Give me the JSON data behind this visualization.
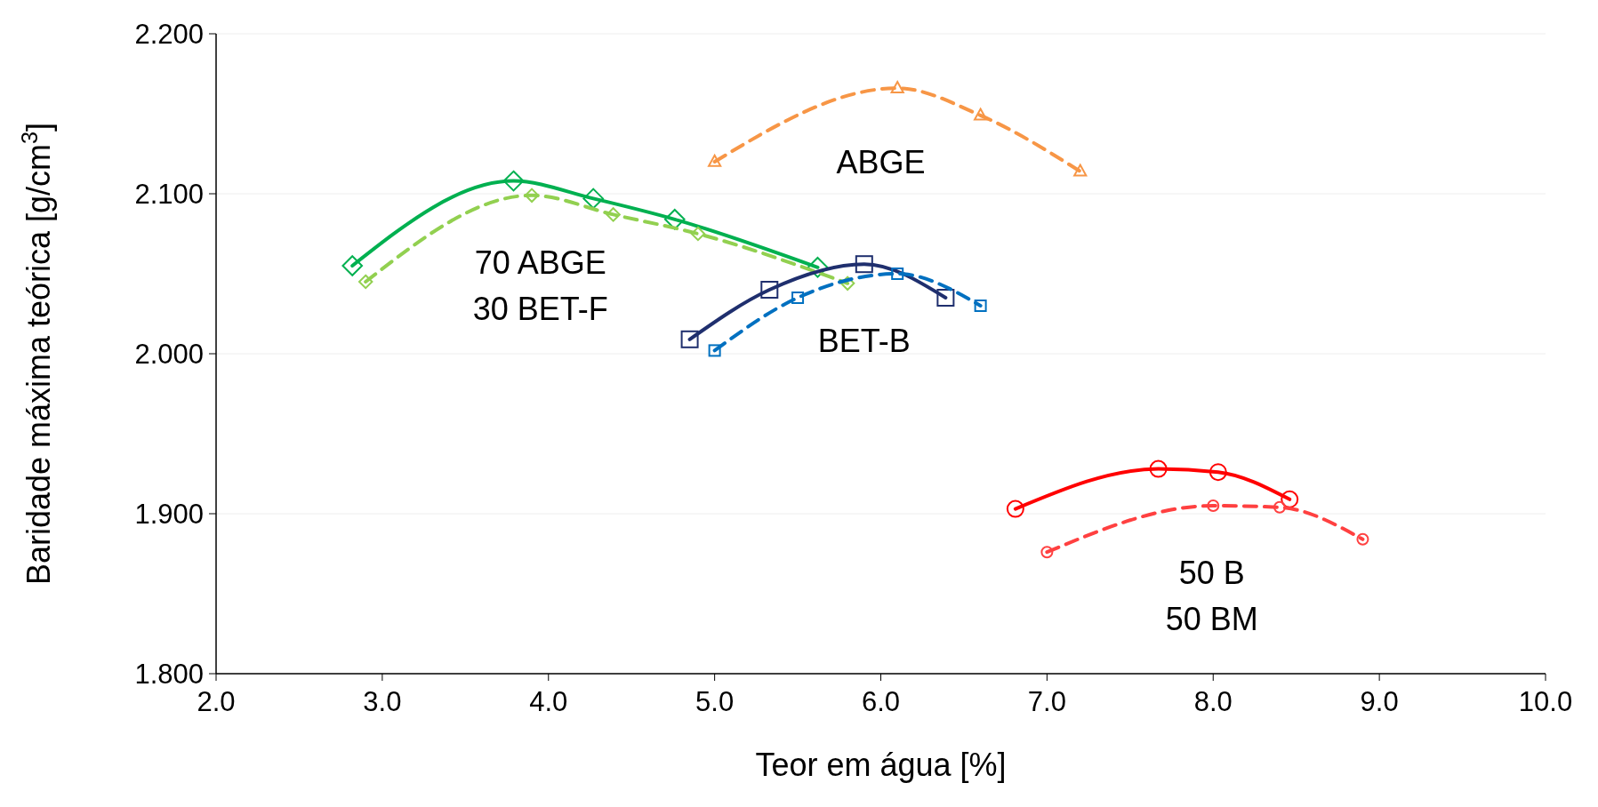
{
  "chart_data": {
    "type": "line",
    "xlabel": "Teor em água [%]",
    "ylabel": "Baridade máxima teórica [g/cm$^{3}$]",
    "xlim": [
      2,
      10
    ],
    "ylim": [
      1.8,
      2.2
    ],
    "xticks": [
      {
        "value": 2,
        "label": "2.0"
      },
      {
        "value": 3,
        "label": "3.0"
      },
      {
        "value": 4,
        "label": "4.0"
      },
      {
        "value": 5,
        "label": "5.0"
      },
      {
        "value": 6,
        "label": "6.0"
      },
      {
        "value": 7,
        "label": "7.0"
      },
      {
        "value": 8,
        "label": "8.0"
      },
      {
        "value": 9,
        "label": "9.0"
      },
      {
        "value": 10,
        "label": "10.0"
      }
    ],
    "yticks": [
      {
        "value": 1.8,
        "label": "1.800"
      },
      {
        "value": 1.9,
        "label": "1.900"
      },
      {
        "value": 2.0,
        "label": "2.000"
      },
      {
        "value": 2.1,
        "label": "2.100"
      },
      {
        "value": 2.2,
        "label": "2.200"
      }
    ],
    "grid": "y",
    "series": [
      {
        "color": "#00b050",
        "marker": "diamond",
        "line_style": "solid",
        "x": [
          2.82,
          3.79,
          4.27,
          4.76,
          5.62
        ],
        "values": [
          2.055,
          2.108,
          2.097,
          2.084,
          2.054
        ]
      },
      {
        "color": "#92d050",
        "marker": "diamond",
        "line_style": "dashed",
        "x": [
          2.9,
          3.9,
          4.39,
          4.9,
          5.8
        ],
        "values": [
          2.045,
          2.099,
          2.087,
          2.075,
          2.044
        ]
      },
      {
        "color": "#1f2f6e",
        "marker": "square",
        "line_style": "solid",
        "x": [
          4.85,
          5.33,
          5.9,
          6.39
        ],
        "values": [
          2.009,
          2.04,
          2.056,
          2.035
        ]
      },
      {
        "color": "#0070c0",
        "marker": "square",
        "line_style": "dashed",
        "x": [
          5.0,
          5.5,
          6.1,
          6.6
        ],
        "values": [
          2.002,
          2.035,
          2.05,
          2.03
        ]
      },
      {
        "color": "#f79646",
        "marker": "triangle",
        "line_style": "dashed",
        "x": [
          5.0,
          6.1,
          6.6,
          7.2
        ],
        "values": [
          2.12,
          2.166,
          2.149,
          2.114
        ]
      },
      {
        "color": "#ff0000",
        "marker": "circle",
        "line_style": "solid",
        "x": [
          6.81,
          7.67,
          8.03,
          8.46
        ],
        "values": [
          1.903,
          1.928,
          1.926,
          1.909
        ]
      },
      {
        "color": "#ff4040",
        "marker": "circle",
        "line_style": "dashed",
        "x": [
          7.0,
          8.0,
          8.4,
          8.9
        ],
        "values": [
          1.876,
          1.905,
          1.904,
          1.884
        ]
      }
    ],
    "annotations": [
      "ABGE",
      "70 ABGE\n30 BET-F",
      "BET-B",
      "50 B\n50 BM"
    ]
  }
}
